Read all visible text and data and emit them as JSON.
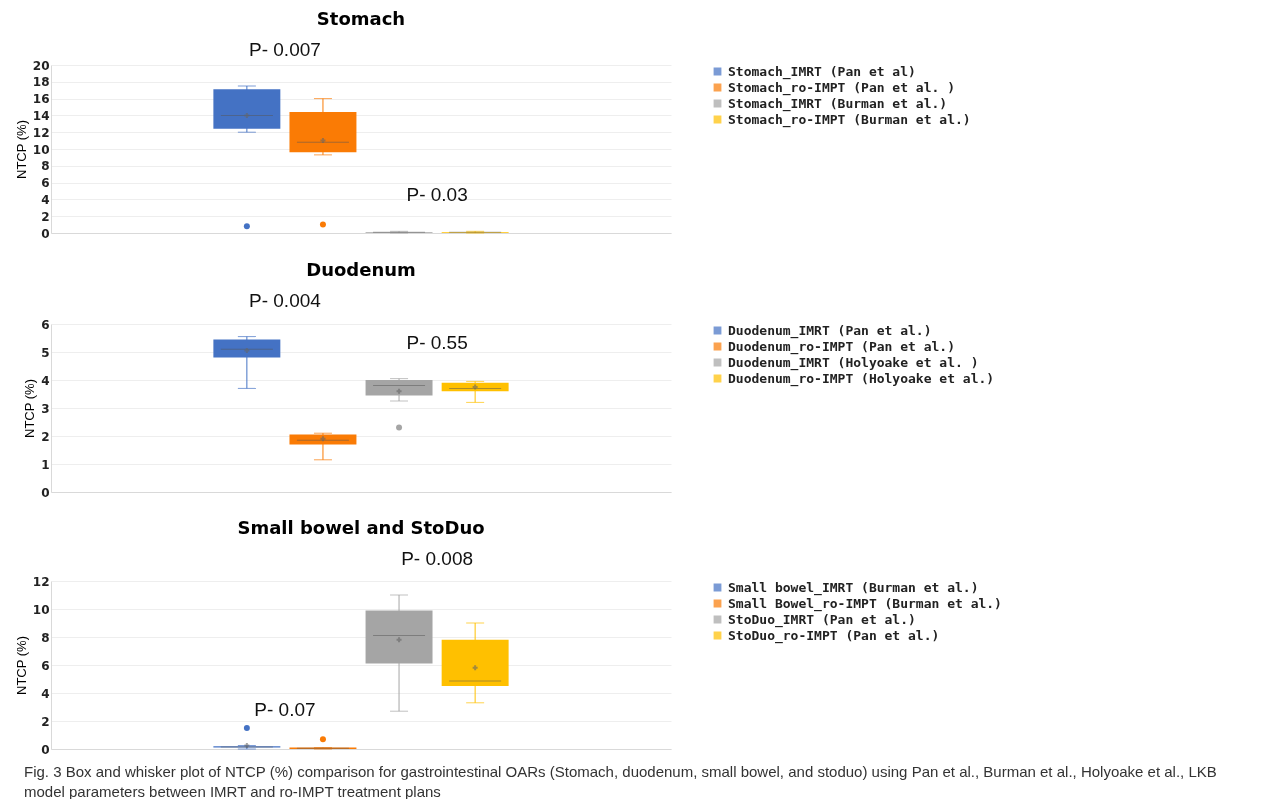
{
  "chart_data": [
    {
      "type": "box",
      "title": "Stomach",
      "ylabel": "NTCP (%)",
      "categories": [
        null
      ],
      "ylim": [
        0,
        20
      ],
      "yticks": [
        0,
        2,
        4,
        6,
        8,
        10,
        12,
        14,
        16,
        18,
        20
      ],
      "grid": "y",
      "legend": "right",
      "tick_labels": "y",
      "annotations": [
        "P- 0.007",
        "P- 0.03"
      ],
      "series": [
        {
          "name": "Stomach_IMRT (Pan et al)",
          "color": "#4472c4",
          "boxes": [
            {
              "low": 12,
              "q1": 12.4,
              "median": 14,
              "q3": 17.1,
              "high": 17.5,
              "mean": 14,
              "outliers": [
                0.8
              ]
            }
          ]
        },
        {
          "name": "Stomach_ro-IMPT (Pan et al. )",
          "color": "#fa7b05",
          "boxes": [
            {
              "low": 9.3,
              "q1": 9.6,
              "median": 10.8,
              "q3": 14.4,
              "high": 16,
              "mean": 11,
              "outliers": [
                1
              ]
            }
          ]
        },
        {
          "name": "Stomach_IMRT (Burman et al.)",
          "color": "#a5a5a5",
          "boxes": [
            {
              "low": 0,
              "q1": 0,
              "median": 0.1,
              "q3": 0.1,
              "high": 0.2
            }
          ]
        },
        {
          "name": "Stomach_ro-IMPT (Burman et al.)",
          "color": "#ffc000",
          "boxes": [
            {
              "low": 0,
              "q1": 0,
              "median": 0.1,
              "q3": 0.1,
              "high": 0.2
            }
          ]
        }
      ]
    },
    {
      "type": "box",
      "title": "Duodenum",
      "ylabel": "NTCP (%)",
      "categories": [
        null
      ],
      "ylim": [
        0,
        6
      ],
      "yticks": [
        0,
        1,
        2,
        3,
        4,
        5,
        6
      ],
      "grid": "y",
      "legend": "right",
      "tick_labels": "y",
      "annotations": [
        "P- 0.004",
        "P- 0.55"
      ],
      "series": [
        {
          "name": "Duodenum_IMRT (Pan et al.)",
          "color": "#4472c4",
          "boxes": [
            {
              "low": 3.7,
              "q1": 4.8,
              "median": 5.1,
              "q3": 5.45,
              "high": 5.55,
              "mean": 5.05
            }
          ]
        },
        {
          "name": "Duodenum_ro-IMPT (Pan et al.)",
          "color": "#fa7b05",
          "boxes": [
            {
              "low": 1.15,
              "q1": 1.7,
              "median": 1.85,
              "q3": 2.05,
              "high": 2.1,
              "mean": 1.9
            }
          ]
        },
        {
          "name": "Duodenum_IMRT (Holyoake et al. )",
          "color": "#a5a5a5",
          "boxes": [
            {
              "low": 3.25,
              "q1": 3.45,
              "median": 3.8,
              "q3": 4,
              "high": 4.05,
              "mean": 3.6,
              "outliers": [
                2.3
              ]
            }
          ]
        },
        {
          "name": "Duodenum_ro-IMPT (Holyoake et al.)",
          "color": "#ffc000",
          "boxes": [
            {
              "low": 3.2,
              "q1": 3.6,
              "median": 3.7,
              "q3": 3.9,
              "high": 3.95,
              "mean": 3.75
            }
          ]
        }
      ]
    },
    {
      "type": "box",
      "title": "Small bowel and StoDuo",
      "ylabel": "NTCP (%)",
      "categories": [
        null
      ],
      "ylim": [
        0,
        12
      ],
      "yticks": [
        0,
        2,
        4,
        6,
        8,
        10,
        12
      ],
      "grid": "y",
      "legend": "right",
      "tick_labels": "y",
      "annotations": [
        "P- 0.07",
        "P- 0.008",
        "Fig. 3 Box and whisker plot of NTCP (%) comparison for gastrointestinal OARs (Stomach, duodenum, small bowel, and stoduo) using Pan et al., Burman et al., Holyoake et al., LKB model parameters between IMRT and ro-IMPT treatment plans"
      ],
      "series": [
        {
          "name": "Small bowel_IMRT (Burman et al.)",
          "color": "#4472c4",
          "boxes": [
            {
              "low": 0,
              "q1": 0.1,
              "median": 0.15,
              "q3": 0.2,
              "high": 0.25,
              "mean": 0.25,
              "outliers": [
                1.5
              ]
            }
          ]
        },
        {
          "name": "Small Bowel_ro-IMPT (Burman et al.)",
          "color": "#fa7b05",
          "boxes": [
            {
              "low": 0,
              "q1": 0,
              "median": 0.05,
              "q3": 0.1,
              "high": 0.1,
              "outliers": [
                0.7
              ]
            }
          ]
        },
        {
          "name": "StoDuo_IMRT (Pan et al.)",
          "color": "#a5a5a5",
          "boxes": [
            {
              "low": 2.7,
              "q1": 6.1,
              "median": 8.1,
              "q3": 9.9,
              "high": 11,
              "mean": 7.8
            }
          ]
        },
        {
          "name": "StoDuo_ro-IMPT (Pan et al.)",
          "color": "#ffc000",
          "boxes": [
            {
              "low": 3.3,
              "q1": 4.5,
              "median": 4.85,
              "q3": 7.8,
              "high": 9,
              "mean": 5.8
            }
          ]
        }
      ]
    }
  ]
}
